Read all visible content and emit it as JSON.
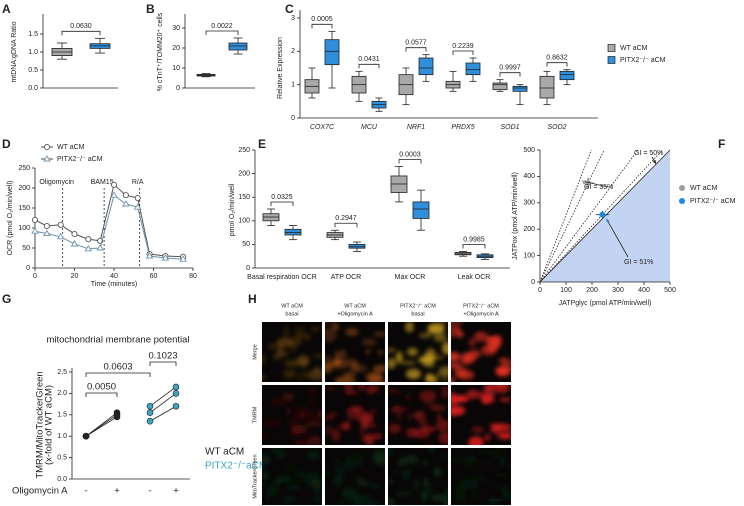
{
  "chart_data": [
    {
      "type": "box",
      "panel": "A",
      "ylabel": "mtDNA:gDNA Ratio",
      "ylim": [
        0,
        1.5
      ],
      "yticks": [
        {
          "value": 0,
          "label": "0.0"
        },
        {
          "value": 0.5,
          "label": "0.5"
        },
        {
          "value": 1,
          "label": "1.0"
        },
        {
          "value": 1.5,
          "label": "1.5"
        }
      ],
      "annotations": [
        "0.0630"
      ],
      "series": [
        {
          "color": "#a9a9a9",
          "boxes": [
            {
              "min": 0.8,
              "q1": 0.9,
              "median": 1.0,
              "q3": 1.1,
              "max": 1.25
            }
          ]
        },
        {
          "color": "#2f8fdc",
          "boxes": [
            {
              "min": 0.97,
              "q1": 1.1,
              "median": 1.17,
              "q3": 1.23,
              "max": 1.38
            }
          ]
        }
      ]
    },
    {
      "type": "box",
      "panel": "B",
      "ylabel": "% cTnT⁺/TOMM20⁺ cells",
      "ylim": [
        0,
        30
      ],
      "yticks": [
        0,
        10,
        20,
        30
      ],
      "annotations": [
        "0.0022"
      ],
      "series": [
        {
          "color": "#a9a9a9",
          "boxes": [
            {
              "min": 5.6,
              "q1": 6.0,
              "median": 6.4,
              "q3": 6.8,
              "max": 7.2
            }
          ]
        },
        {
          "color": "#2f8fdc",
          "boxes": [
            {
              "min": 17,
              "q1": 19,
              "median": 21,
              "q3": 22.5,
              "max": 25
            }
          ]
        }
      ]
    },
    {
      "type": "box",
      "panel": "C",
      "ylabel": "Relative Expression",
      "ylim": [
        0,
        3
      ],
      "yticks": [
        0,
        1,
        2,
        3
      ],
      "categories": [
        "COX7C",
        "MCU",
        "NRF1",
        "PRDX5",
        "SOD1",
        "SOD2"
      ],
      "annotations": [
        "0.0005",
        "0.0431",
        "0.0577",
        "0.2239",
        "0.9997",
        "0.8632"
      ],
      "series": [
        {
          "name": "WT aCM",
          "color": "#a9a9a9",
          "boxes": [
            {
              "min": 0.6,
              "q1": 0.75,
              "median": 0.95,
              "q3": 1.15,
              "max": 1.5
            },
            {
              "min": 0.5,
              "q1": 0.75,
              "median": 1.0,
              "q3": 1.25,
              "max": 1.4
            },
            {
              "min": 0.4,
              "q1": 0.7,
              "median": 1.0,
              "q3": 1.3,
              "max": 1.5
            },
            {
              "min": 0.8,
              "q1": 0.9,
              "median": 1.0,
              "q3": 1.1,
              "max": 1.4
            },
            {
              "min": 0.8,
              "q1": 0.85,
              "median": 1.0,
              "q3": 1.05,
              "max": 1.15
            },
            {
              "min": 0.4,
              "q1": 0.6,
              "median": 0.9,
              "q3": 1.25,
              "max": 1.4
            }
          ]
        },
        {
          "name": "PITX2⁻/⁻ aCM",
          "color": "#2f8fdc",
          "boxes": [
            {
              "min": 0.9,
              "q1": 1.6,
              "median": 2.0,
              "q3": 2.35,
              "max": 2.6
            },
            {
              "min": 0.2,
              "q1": 0.3,
              "median": 0.4,
              "q3": 0.5,
              "max": 0.6
            },
            {
              "min": 1.1,
              "q1": 1.3,
              "median": 1.5,
              "q3": 1.8,
              "max": 1.9
            },
            {
              "min": 1.1,
              "q1": 1.3,
              "median": 1.45,
              "q3": 1.65,
              "max": 1.8
            },
            {
              "min": 0.4,
              "q1": 0.8,
              "median": 0.9,
              "q3": 0.95,
              "max": 1.0
            },
            {
              "min": 1.0,
              "q1": 1.15,
              "median": 1.3,
              "q3": 1.4,
              "max": 1.45
            }
          ]
        }
      ]
    },
    {
      "type": "line",
      "panel": "D",
      "xlabel": "Time (minutes)",
      "ylabel": "OCR (pmol O₂/min/well)",
      "xlim": [
        0,
        80
      ],
      "xticks": [
        0,
        20,
        40,
        60,
        80
      ],
      "ylim": [
        0,
        250
      ],
      "yticks": [
        0,
        50,
        100,
        150,
        200,
        250
      ],
      "events": [
        {
          "label": "Oligomycin",
          "x": 14
        },
        {
          "label": "BAM15",
          "x": 35
        },
        {
          "label": "R/A",
          "x": 53
        }
      ],
      "x": [
        0,
        6,
        13,
        20,
        27,
        33,
        40,
        46,
        52,
        58,
        66,
        75
      ],
      "series": [
        {
          "name": "WT aCM",
          "color": "#555555",
          "marker": "circle",
          "values": [
            120,
            105,
            108,
            85,
            72,
            68,
            208,
            182,
            175,
            35,
            30,
            28
          ]
        },
        {
          "name": "PITX2⁻/⁻ aCM",
          "color": "#6c93b0",
          "marker": "triangle",
          "values": [
            92,
            86,
            78,
            60,
            48,
            50,
            182,
            160,
            152,
            30,
            25,
            22
          ]
        }
      ]
    },
    {
      "type": "box",
      "panel": "E",
      "ylabel": "pmol O₂/min/well",
      "ylim": [
        0,
        250
      ],
      "yticks": [
        0,
        50,
        100,
        150,
        200,
        250
      ],
      "categories": [
        "Basal respiration OCR",
        "ATP OCR",
        "Max OCR",
        "Leak OCR"
      ],
      "annotations": [
        "0.0325",
        "0.2947",
        "0.0003",
        "0.9985"
      ],
      "series": [
        {
          "color": "#a9a9a9",
          "boxes": [
            {
              "min": 90,
              "q1": 100,
              "median": 108,
              "q3": 115,
              "max": 125
            },
            {
              "min": 60,
              "q1": 65,
              "median": 70,
              "q3": 75,
              "max": 80
            },
            {
              "min": 140,
              "q1": 160,
              "median": 178,
              "q3": 195,
              "max": 215
            },
            {
              "min": 25,
              "q1": 28,
              "median": 30,
              "q3": 33,
              "max": 35
            }
          ]
        },
        {
          "color": "#2f8fdc",
          "boxes": [
            {
              "min": 60,
              "q1": 70,
              "median": 75,
              "q3": 82,
              "max": 90
            },
            {
              "min": 35,
              "q1": 42,
              "median": 45,
              "q3": 50,
              "max": 55
            },
            {
              "min": 80,
              "q1": 105,
              "median": 125,
              "q3": 140,
              "max": 165
            },
            {
              "min": 18,
              "q1": 22,
              "median": 25,
              "q3": 28,
              "max": 30
            }
          ]
        }
      ]
    },
    {
      "type": "scatter",
      "panel": "F",
      "xlabel": "JATPglyc (pmol ATP/min/well)",
      "ylabel": "JATPox (pmol ATP/min/well)",
      "xlim": [
        0,
        500
      ],
      "xticks": [
        0,
        100,
        200,
        300,
        400,
        500
      ],
      "ylim": [
        0,
        500
      ],
      "yticks": [
        0,
        100,
        200,
        300,
        400,
        500
      ],
      "annotations": [
        "GI = 50%",
        "GI = 35%",
        "GI = 51%"
      ],
      "series": [
        {
          "name": "WT aCM",
          "color": "#9e9e9e",
          "x": [
            185
          ],
          "values": [
            375
          ],
          "xerr": [
            20
          ],
          "yerr": [
            20
          ]
        },
        {
          "name": "PITX2⁻/⁻ aCM",
          "color": "#1e88e5",
          "x": [
            240
          ],
          "values": [
            255
          ],
          "xerr": [
            25
          ],
          "yerr": [
            15
          ]
        }
      ]
    },
    {
      "type": "paired",
      "panel": "G",
      "title": "mitochondrial membrane potential",
      "ylabel": [
        "TMRM/MitoTrackerGreen",
        "(x-fold of WT aCM)"
      ],
      "xlabel": "Oligomycin A",
      "ylim": [
        0,
        2.5
      ],
      "yticks": [
        {
          "value": 0,
          "label": "0.0"
        },
        {
          "value": 0.5,
          "label": "0.5"
        },
        {
          "value": 1,
          "label": "1.0"
        },
        {
          "value": 1.5,
          "label": "1.5"
        },
        {
          "value": 2,
          "label": "2.0"
        },
        {
          "value": 2.5,
          "label": "2.5"
        }
      ],
      "categories": [
        "-",
        "+",
        "-",
        "+"
      ],
      "annotations": [
        "0.0050",
        "0.0603",
        "0.1023"
      ],
      "series": [
        {
          "name": "WT aCM",
          "color": "#222222",
          "basal": [
            1,
            1,
            1
          ],
          "oligo": [
            1.45,
            1.5,
            1.55
          ]
        },
        {
          "name": "PITX2⁻/⁻aCM",
          "color": "#3aa6c4",
          "basal": [
            1.35,
            1.55,
            1.7
          ],
          "oligo": [
            1.7,
            2.0,
            2.15
          ]
        }
      ]
    }
  ],
  "image_panel": {
    "label": "H",
    "columns": [
      [
        "WT aCM",
        "basal"
      ],
      [
        "WT aCM",
        "+Oligomycin A"
      ],
      [
        "PITX2⁻/⁻ aCM",
        "basal"
      ],
      [
        "PITX2⁻/⁻ aCM",
        "+Oligomycin A"
      ]
    ],
    "rows": [
      "Merge",
      "TMRM",
      "MitoTrackerGreen"
    ]
  }
}
